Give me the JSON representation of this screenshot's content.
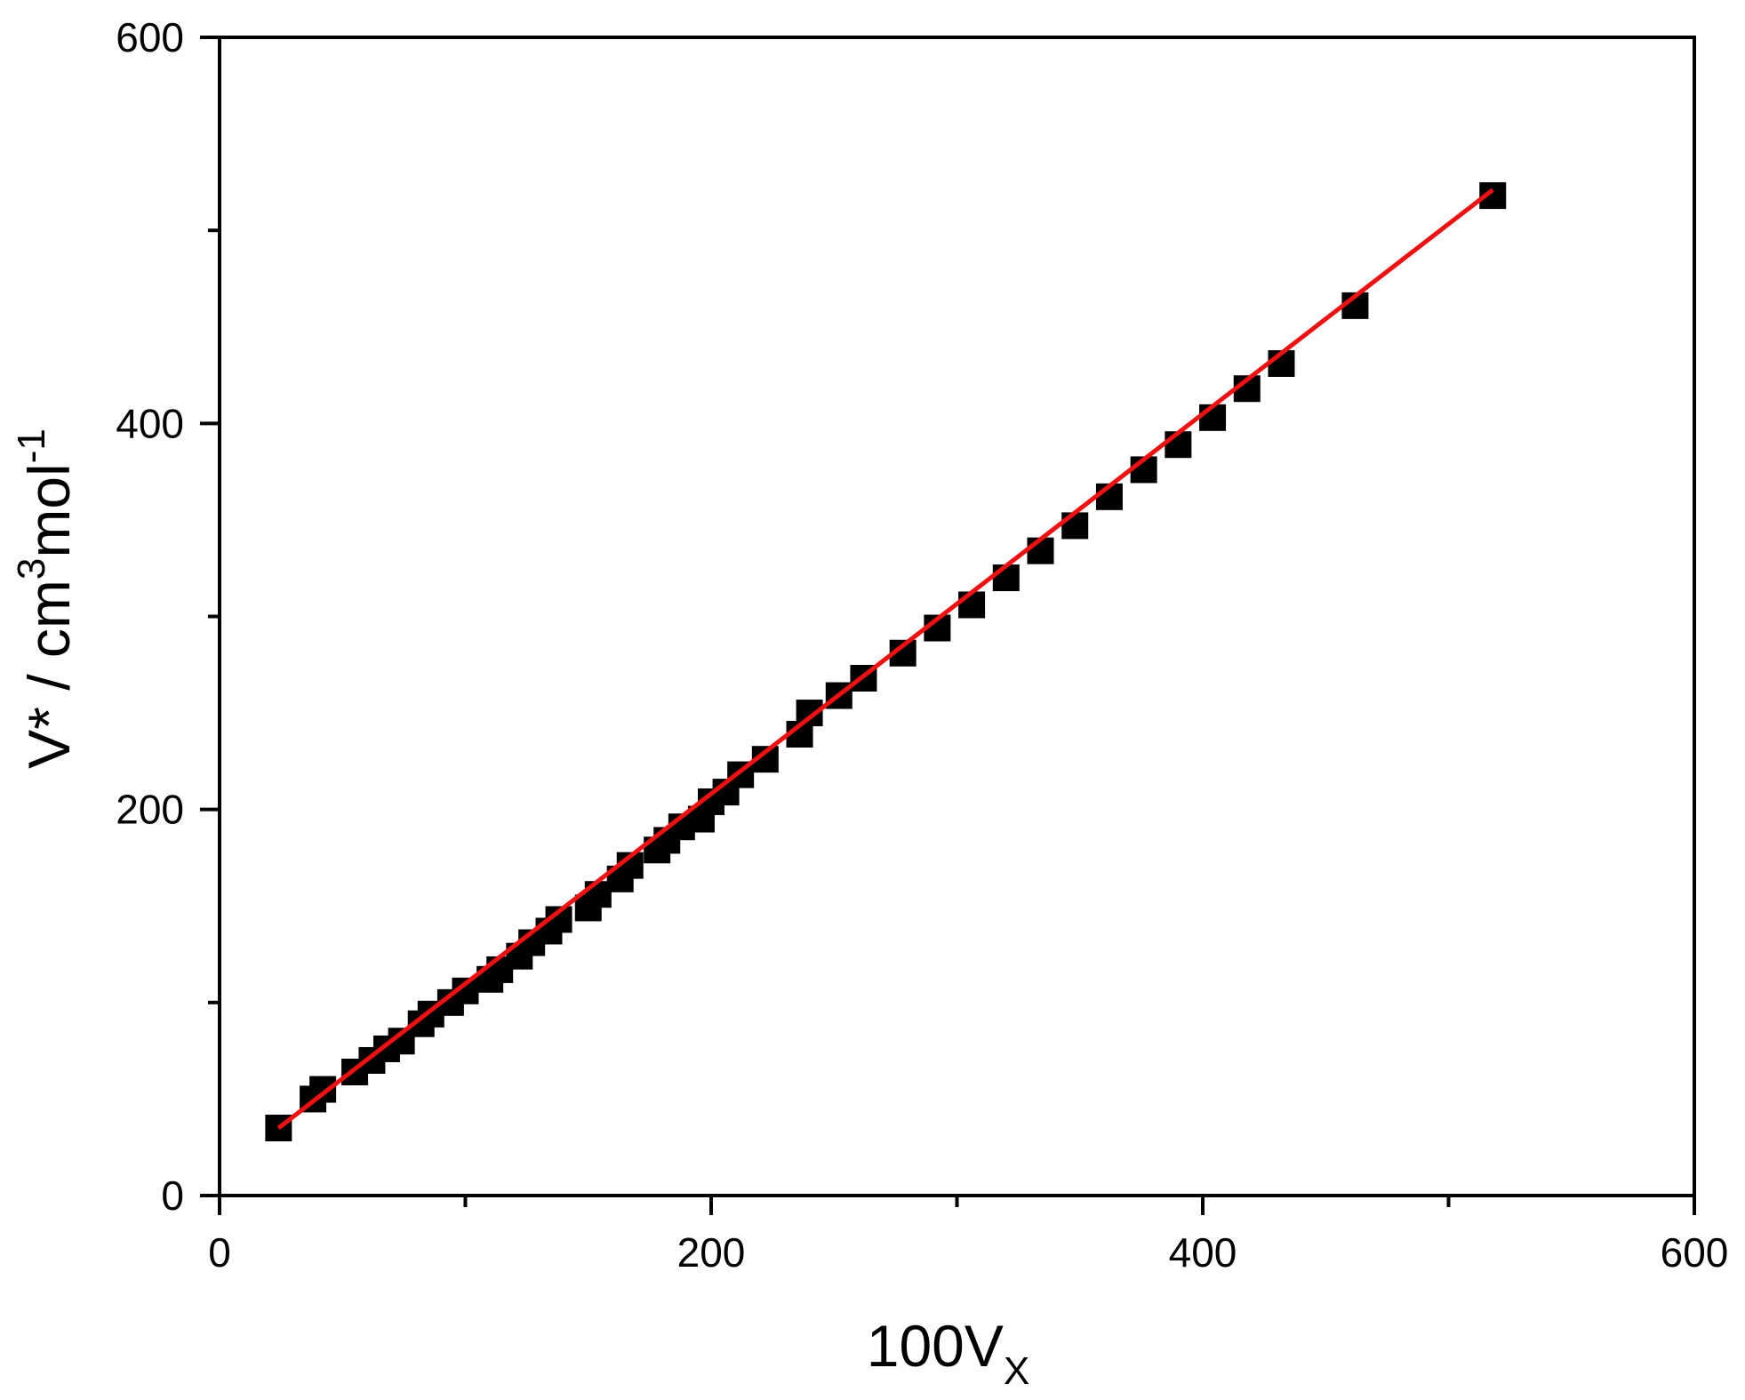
{
  "chart_data": {
    "type": "scatter",
    "xlabel": {
      "main": "100V",
      "sub": "X"
    },
    "ylabel": {
      "main": "V* / cm",
      "sup1": "3",
      "mid": "mol",
      "sup2": "-1"
    },
    "xlim": [
      0,
      600
    ],
    "ylim": [
      0,
      600
    ],
    "x_ticks": [
      0,
      200,
      400,
      600
    ],
    "y_ticks": [
      0,
      200,
      400,
      600
    ],
    "x_ticks_minor": [
      100,
      300,
      500
    ],
    "y_ticks_minor": [
      100,
      300,
      500
    ],
    "grid": false,
    "legend": "none",
    "colors": {
      "points": "#000000",
      "fit_line": "#ee1111",
      "frame": "#000000"
    },
    "series": [
      {
        "kind": "points",
        "x": [
          24,
          38,
          42,
          55,
          62,
          68,
          74,
          82,
          86,
          94,
          100,
          110,
          114,
          122,
          127,
          134,
          138,
          150,
          154,
          163,
          167,
          178,
          182,
          188,
          196,
          200,
          206,
          212,
          222,
          236,
          240,
          252,
          262,
          278,
          292,
          306,
          320,
          334,
          348,
          362,
          376,
          390,
          404,
          418,
          432,
          462,
          518
        ],
        "y": [
          35,
          50,
          55,
          64,
          70,
          76,
          80,
          89,
          94,
          100,
          106,
          112,
          117,
          124,
          131,
          137,
          143,
          149,
          156,
          164,
          171,
          179,
          184,
          191,
          195,
          204,
          209,
          218,
          226,
          239,
          250,
          259,
          268,
          281,
          294,
          306,
          320,
          334,
          347,
          362,
          376,
          389,
          403,
          418,
          431,
          461,
          518
        ]
      },
      {
        "kind": "fit_line",
        "x": [
          24,
          518
        ],
        "y": [
          35,
          521
        ]
      }
    ]
  }
}
